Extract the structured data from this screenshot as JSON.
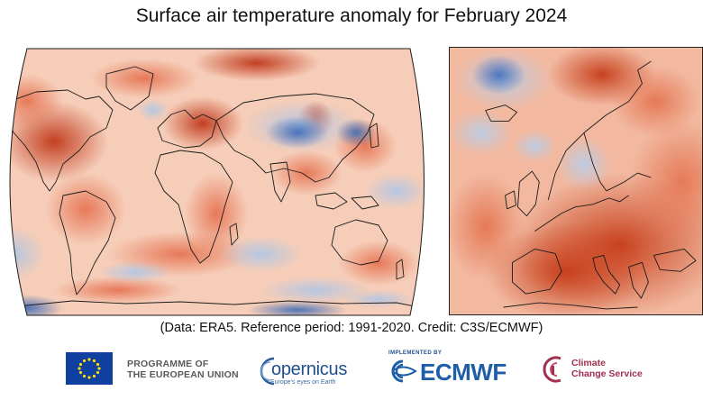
{
  "title": "Surface air temperature anomaly for February 2024",
  "caption": "(Data: ERA5.  Reference period: 1991-2020.  Credit: C3S/ECMWF)",
  "colors": {
    "warm_strong": "#c8421c",
    "warm_mid": "#e8785a",
    "warm_light": "#f6c2ad",
    "neutral": "#f7e8e0",
    "cool_light": "#c8d8ec",
    "cool_mid": "#7da2d2",
    "cool_strong": "#3f6db8",
    "coastline": "#1a1a1a"
  },
  "logos": {
    "eu_programme": [
      "PROGRAMME OF",
      "THE EUROPEAN UNION"
    ],
    "copernicus": "opernicus",
    "copernicus_tagline": "Europe's eyes on Earth",
    "ecmwf_implemented": "IMPLEMENTED BY",
    "ecmwf": "ECMWF",
    "c3s": [
      "Climate",
      "Change Service"
    ]
  }
}
